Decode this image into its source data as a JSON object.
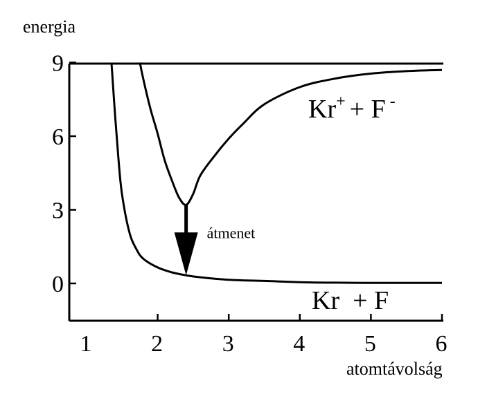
{
  "chart_data": {
    "type": "line",
    "title": "",
    "ylabel": "energia",
    "xlabel": "atomtávolság",
    "xlim": [
      1,
      6
    ],
    "ylim": [
      -1.5,
      9
    ],
    "x_ticks": [
      1,
      2,
      3,
      4,
      5,
      6
    ],
    "x_tick_labels": [
      "1",
      "2",
      "3",
      "4",
      "5",
      "6"
    ],
    "y_ticks": [
      0,
      3,
      6,
      9
    ],
    "y_tick_labels": [
      "0",
      "3",
      "6",
      "9"
    ],
    "grid": false,
    "series": [
      {
        "name": "Kr + F",
        "x": [
          1.35,
          1.4,
          1.45,
          1.5,
          1.6,
          1.7,
          1.8,
          2.0,
          2.2,
          2.4,
          2.6,
          3.0,
          3.5,
          4.0,
          4.5,
          5.0,
          5.5,
          6.0
        ],
        "y": [
          9.0,
          6.9,
          5.0,
          3.6,
          2.1,
          1.4,
          1.0,
          0.65,
          0.45,
          0.33,
          0.25,
          0.15,
          0.1,
          0.05,
          0.03,
          0.02,
          0.02,
          0.02
        ]
      },
      {
        "name": "Kr+ + F-",
        "x": [
          1.75,
          1.8,
          1.9,
          2.0,
          2.1,
          2.2,
          2.3,
          2.4,
          2.5,
          2.6,
          2.8,
          3.0,
          3.2,
          3.5,
          4.0,
          4.5,
          5.0,
          5.5,
          6.0
        ],
        "y": [
          9.0,
          8.3,
          7.1,
          6.1,
          5.0,
          4.2,
          3.5,
          3.2,
          3.65,
          4.4,
          5.2,
          5.9,
          6.5,
          7.3,
          8.0,
          8.35,
          8.55,
          8.65,
          8.7
        ]
      }
    ],
    "annotations": [
      {
        "text": "átmenet",
        "arrow_from": [
          2.4,
          3.2
        ],
        "arrow_to": [
          2.4,
          0.33
        ]
      }
    ],
    "curve_labels": {
      "upper_main": "Kr",
      "upper_sup1": "+",
      "upper_mid": "+ F",
      "upper_sup2": "-",
      "lower": "Kr  + F"
    }
  }
}
